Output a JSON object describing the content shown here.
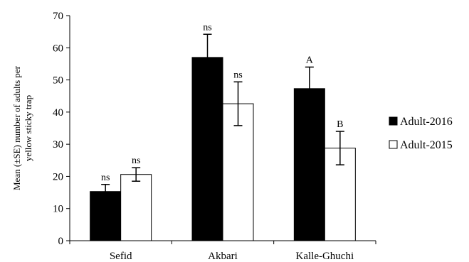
{
  "chart_data": {
    "type": "bar",
    "title": "",
    "ylabel_lines": [
      "Mean (±SE) number of adults per",
      "yellow sticky trap"
    ],
    "xlabel": "",
    "ylim": [
      0,
      70
    ],
    "yticks": [
      0,
      10,
      20,
      30,
      40,
      50,
      60,
      70
    ],
    "categories": [
      "Sefid",
      "Akbari",
      "Kalle-Ghuchi"
    ],
    "legend_position": "right",
    "grid": false,
    "series": [
      {
        "name": "Adult-2016",
        "color": "#000000",
        "values": [
          15.3,
          57.0,
          47.3
        ],
        "errors": [
          2.2,
          7.2,
          6.7
        ],
        "labels": [
          "ns",
          "ns",
          "A"
        ]
      },
      {
        "name": "Adult-2015",
        "color": "#ffffff",
        "values": [
          20.6,
          42.6,
          28.8
        ],
        "errors": [
          2.1,
          6.8,
          5.2
        ],
        "labels": [
          "ns",
          "ns",
          "B"
        ]
      }
    ]
  }
}
